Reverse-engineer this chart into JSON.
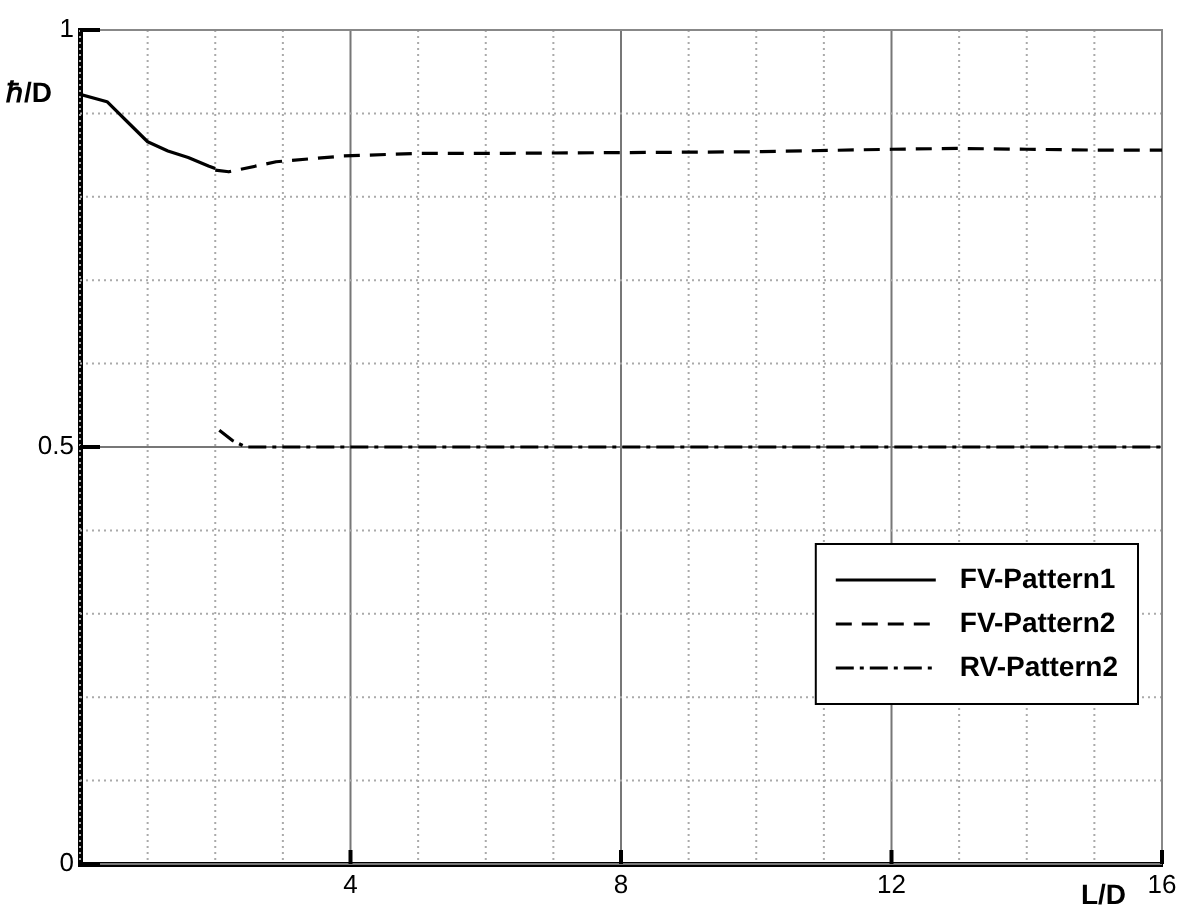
{
  "chart_data": {
    "type": "line",
    "xlabel": "L/D",
    "ylabel": "ℏ/D",
    "xlim": [
      0,
      16
    ],
    "xticks": [
      {
        "value": 0,
        "label": null
      },
      {
        "value": 1,
        "label": null
      },
      {
        "value": 2,
        "label": null
      },
      {
        "value": 3,
        "label": null
      },
      4,
      {
        "value": 5,
        "label": null
      },
      {
        "value": 6,
        "label": null
      },
      {
        "value": 7,
        "label": null
      },
      8,
      {
        "value": 9,
        "label": null
      },
      {
        "value": 10,
        "label": null
      },
      {
        "value": 11,
        "label": null
      },
      12,
      {
        "value": 13,
        "label": null
      },
      {
        "value": 14,
        "label": null
      },
      {
        "value": 15,
        "label": null
      },
      16
    ],
    "ylim": [
      0,
      1
    ],
    "yticks": [
      0,
      {
        "value": 0.1,
        "label": null
      },
      {
        "value": 0.2,
        "label": null
      },
      {
        "value": 0.3,
        "label": null
      },
      {
        "value": 0.4,
        "label": null
      },
      0.5,
      {
        "value": 0.6,
        "label": null
      },
      {
        "value": 0.7,
        "label": null
      },
      {
        "value": 0.8,
        "label": null
      },
      {
        "value": 0.9,
        "label": null
      },
      1
    ],
    "grid": true,
    "legend": "bottom right",
    "marker": "none",
    "series": [
      {
        "name": "FV-Pattern1",
        "color": "#000000",
        "line_style": "solid",
        "x": [
          0,
          0.4,
          0.7,
          1.0,
          1.3,
          1.6,
          1.9,
          2.0
        ],
        "values": [
          0.923,
          0.914,
          0.89,
          0.866,
          0.855,
          0.847,
          0.837,
          0.834
        ]
      },
      {
        "name": "FV-Pattern2",
        "color": "#000000",
        "line_style": "dashed",
        "x": [
          2.0,
          2.2,
          2.9,
          3.9,
          5,
          6,
          8,
          10,
          12,
          13,
          14,
          15,
          16
        ],
        "values": [
          0.832,
          0.83,
          0.842,
          0.849,
          0.852,
          0.852,
          0.853,
          0.854,
          0.857,
          0.858,
          0.857,
          0.856,
          0.856
        ]
      },
      {
        "name": "RV-Pattern2",
        "color": "#000000",
        "line_style": "dashdot",
        "x": [
          2.06,
          2.25,
          2.45,
          3,
          4,
          8,
          12,
          16
        ],
        "values": [
          0.52,
          0.508,
          0.5,
          0.5,
          0.5,
          0.5,
          0.5,
          0.5
        ]
      }
    ]
  }
}
